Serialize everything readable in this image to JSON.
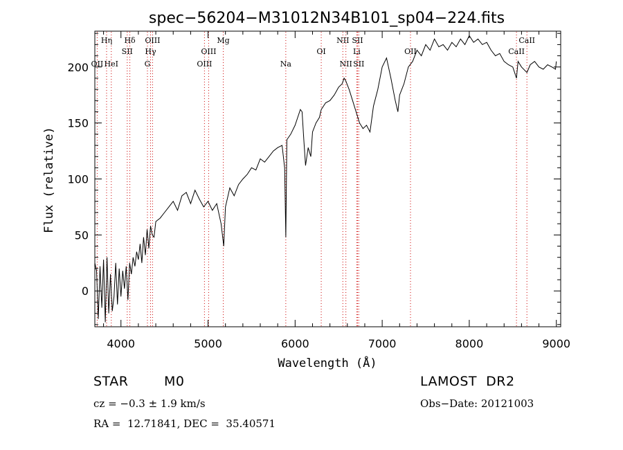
{
  "chart_data": {
    "type": "line",
    "title": "spec−56204−M31012N34B101_sp04−224.fits",
    "xlabel": "Wavelength (Å)",
    "ylabel": "Flux (relative)",
    "xlim": [
      3700,
      9050
    ],
    "ylim": [
      -32,
      232
    ],
    "xticks": [
      4000,
      5000,
      6000,
      7000,
      8000,
      9000
    ],
    "yticks": [
      0,
      50,
      100,
      150,
      200
    ],
    "grid": false,
    "line_color": "#000000",
    "marker_color": "#cc0000",
    "x": [
      3700,
      3720,
      3740,
      3760,
      3780,
      3800,
      3820,
      3840,
      3860,
      3880,
      3900,
      3920,
      3940,
      3960,
      3980,
      4000,
      4020,
      4040,
      4060,
      4080,
      4100,
      4120,
      4140,
      4160,
      4180,
      4200,
      4220,
      4240,
      4260,
      4280,
      4300,
      4320,
      4340,
      4360,
      4380,
      4400,
      4450,
      4500,
      4550,
      4600,
      4650,
      4700,
      4750,
      4800,
      4850,
      4900,
      4950,
      5000,
      5050,
      5100,
      5150,
      5180,
      5200,
      5250,
      5300,
      5350,
      5400,
      5450,
      5500,
      5550,
      5600,
      5650,
      5700,
      5750,
      5800,
      5850,
      5880,
      5893,
      5905,
      5950,
      6000,
      6030,
      6060,
      6080,
      6100,
      6120,
      6150,
      6180,
      6200,
      6240,
      6280,
      6300,
      6350,
      6400,
      6450,
      6500,
      6540,
      6563,
      6580,
      6620,
      6660,
      6700,
      6740,
      6780,
      6820,
      6860,
      6900,
      6950,
      7000,
      7050,
      7100,
      7150,
      7180,
      7200,
      7250,
      7300,
      7350,
      7400,
      7450,
      7500,
      7550,
      7600,
      7650,
      7700,
      7750,
      7800,
      7850,
      7900,
      7950,
      8000,
      8050,
      8100,
      8150,
      8200,
      8250,
      8300,
      8350,
      8400,
      8450,
      8500,
      8542,
      8560,
      8600,
      8662,
      8700,
      8750,
      8800,
      8850,
      8900,
      8950,
      8990,
      9000
    ],
    "y": [
      25,
      18,
      -25,
      22,
      -15,
      28,
      -28,
      30,
      -20,
      15,
      -18,
      -5,
      25,
      -12,
      20,
      -5,
      18,
      2,
      22,
      -8,
      25,
      15,
      30,
      22,
      35,
      28,
      42,
      25,
      48,
      32,
      55,
      38,
      58,
      50,
      48,
      62,
      65,
      70,
      75,
      80,
      72,
      85,
      88,
      78,
      90,
      82,
      75,
      80,
      72,
      78,
      60,
      40,
      75,
      92,
      85,
      95,
      100,
      104,
      110,
      108,
      118,
      115,
      120,
      125,
      128,
      130,
      110,
      48,
      135,
      140,
      148,
      155,
      162,
      160,
      135,
      112,
      128,
      120,
      142,
      150,
      155,
      162,
      168,
      170,
      175,
      182,
      185,
      190,
      188,
      180,
      170,
      160,
      150,
      145,
      148,
      142,
      165,
      180,
      200,
      208,
      190,
      170,
      160,
      175,
      185,
      200,
      205,
      215,
      210,
      220,
      215,
      225,
      218,
      220,
      215,
      222,
      218,
      225,
      220,
      228,
      222,
      225,
      220,
      222,
      215,
      210,
      212,
      205,
      202,
      200,
      190,
      205,
      200,
      195,
      202,
      205,
      200,
      198,
      202,
      200,
      198,
      205
    ]
  },
  "line_markers": [
    {
      "name": "OII",
      "wavelength": 3727,
      "label_row": 3
    },
    {
      "name": "Hη",
      "wavelength": 3835,
      "label_row": 1
    },
    {
      "name": "HeI",
      "wavelength": 3889,
      "label_row": 3
    },
    {
      "name": "Hδ",
      "wavelength": 4102,
      "label_row": 1
    },
    {
      "name": "SII",
      "wavelength": 4072,
      "label_row": 2
    },
    {
      "name": "OIII",
      "wavelength": 4363,
      "label_row": 1
    },
    {
      "name": "Hγ",
      "wavelength": 4340,
      "label_row": 2
    },
    {
      "name": "G",
      "wavelength": 4304,
      "label_row": 3
    },
    {
      "name": "OIII",
      "wavelength": 5007,
      "label_row": 2
    },
    {
      "name": "OIII",
      "wavelength": 4959,
      "label_row": 3
    },
    {
      "name": "Mg",
      "wavelength": 5175,
      "label_row": 1
    },
    {
      "name": "Na",
      "wavelength": 5893,
      "label_row": 3
    },
    {
      "name": "OI",
      "wavelength": 6300,
      "label_row": 2
    },
    {
      "name": "NII",
      "wavelength": 6548,
      "label_row": 1
    },
    {
      "name": "SII",
      "wavelength": 6717,
      "label_row": 1
    },
    {
      "name": "Li",
      "wavelength": 6708,
      "label_row": 2
    },
    {
      "name": "NII",
      "wavelength": 6583,
      "label_row": 3
    },
    {
      "name": "SII",
      "wavelength": 6731,
      "label_row": 3
    },
    {
      "name": "OII",
      "wavelength": 7325,
      "label_row": 2
    },
    {
      "name": "CaII",
      "wavelength": 8662,
      "label_row": 1
    },
    {
      "name": "CaII",
      "wavelength": 8542,
      "label_row": 2
    }
  ],
  "info": {
    "object_class": "STAR",
    "subclass": "M0",
    "survey": "LAMOST  DR2",
    "redshift": "cz = −0.3 ± 1.9 km/s",
    "obs_date": "Obs−Date: 20121003",
    "coords": "RA =  12.71841, DEC =  35.40571"
  }
}
